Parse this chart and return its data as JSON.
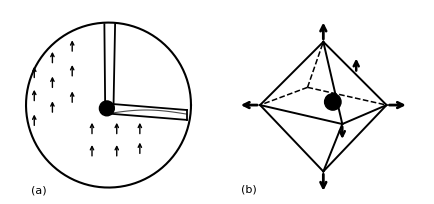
{
  "fig_width": 4.34,
  "fig_height": 2.04,
  "bg_color": "#ffffff",
  "label_a": "(a)",
  "label_b": "(b)",
  "arrow_color": "#000000"
}
